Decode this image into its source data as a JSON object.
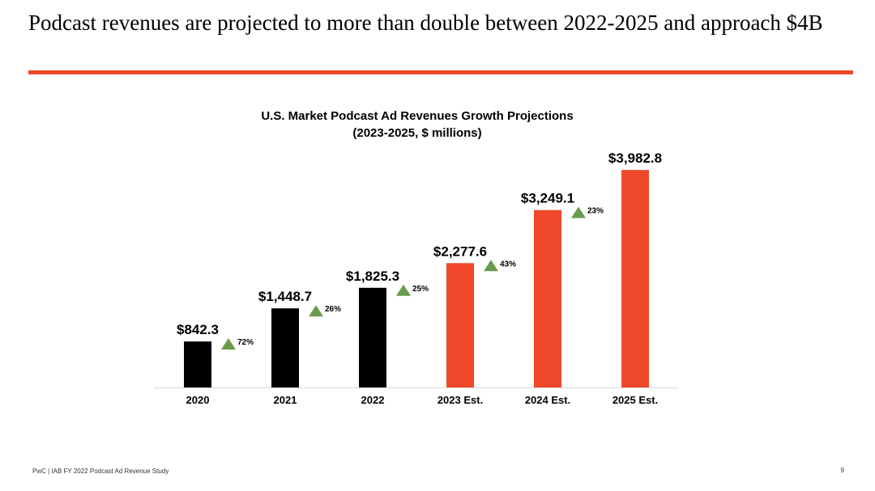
{
  "slide": {
    "title": "Podcast revenues are projected to more than double between 2022-2025 and approach $4B",
    "accent_color": "#f0482a",
    "footer_source": "PwC |  IAB FY 2022 Podcast Ad Revenue Study",
    "page_number": "9"
  },
  "chart_data": {
    "type": "bar",
    "title": "U.S. Market Podcast Ad Revenues Growth Projections",
    "subtitle": "(2023-2025, $ millions)",
    "categories": [
      "2020",
      "2021",
      "2022",
      "2023 Est.",
      "2024 Est.",
      "2025 Est."
    ],
    "values": [
      842.3,
      1448.7,
      1825.3,
      2277.6,
      3249.1,
      3982.8
    ],
    "value_labels": [
      "$842.3",
      "$1,448.7",
      "$1,825.3",
      "$2,277.6",
      "$3,249.1",
      "$3,982.8"
    ],
    "bar_colors": [
      "#000000",
      "#000000",
      "#000000",
      "#f0482a",
      "#f0482a",
      "#f0482a"
    ],
    "growth_labels": [
      "72%",
      "26%",
      "25%",
      "43%",
      "23%"
    ],
    "growth_marker_color": "#6a9a4c",
    "ylim": [
      0,
      4400
    ],
    "grid": false,
    "legend": "none"
  }
}
